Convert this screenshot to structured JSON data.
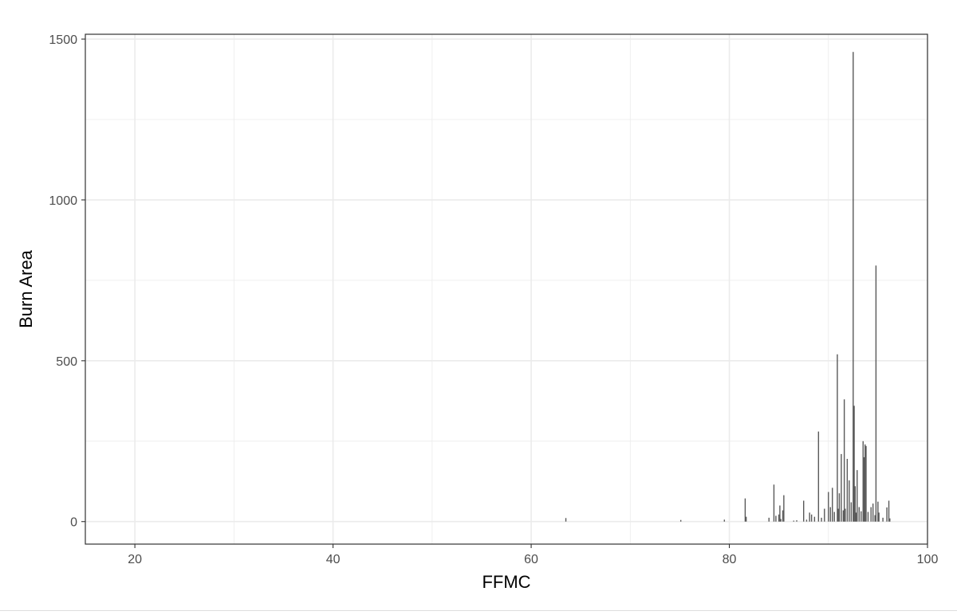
{
  "chart_data": {
    "type": "bar",
    "title": "",
    "xlabel": "FFMC",
    "ylabel": "Burn Area",
    "xlim": [
      15,
      100
    ],
    "ylim": [
      -70,
      1515
    ],
    "x_ticks": [
      20,
      40,
      60,
      80,
      100
    ],
    "y_ticks": [
      0,
      500,
      1000,
      1500
    ],
    "x_tick_labels": [
      "20",
      "40",
      "60",
      "80",
      "100"
    ],
    "y_tick_labels": [
      "0",
      "500",
      "1000",
      "1500"
    ],
    "grid": true,
    "legend": "none",
    "colors": {
      "bar": "#595959",
      "grid": "#ebebeb",
      "border": "#333333"
    },
    "points": [
      [
        63.5,
        11
      ],
      [
        75.1,
        5
      ],
      [
        79.5,
        6
      ],
      [
        81.6,
        72
      ],
      [
        81.7,
        15
      ],
      [
        84.0,
        12
      ],
      [
        84.5,
        115
      ],
      [
        84.7,
        18
      ],
      [
        85.0,
        22
      ],
      [
        85.1,
        50
      ],
      [
        85.2,
        8
      ],
      [
        85.4,
        35
      ],
      [
        85.5,
        82
      ],
      [
        86.5,
        3
      ],
      [
        86.8,
        4
      ],
      [
        87.5,
        65
      ],
      [
        87.8,
        6
      ],
      [
        88.1,
        28
      ],
      [
        88.3,
        22
      ],
      [
        88.6,
        15
      ],
      [
        89.0,
        280
      ],
      [
        89.3,
        12
      ],
      [
        89.6,
        40
      ],
      [
        90.0,
        92
      ],
      [
        90.2,
        45
      ],
      [
        90.4,
        105
      ],
      [
        90.6,
        30
      ],
      [
        90.9,
        520
      ],
      [
        91.0,
        40
      ],
      [
        91.1,
        88
      ],
      [
        91.3,
        210
      ],
      [
        91.5,
        35
      ],
      [
        91.6,
        380
      ],
      [
        91.7,
        40
      ],
      [
        91.9,
        195
      ],
      [
        92.1,
        128
      ],
      [
        92.3,
        60
      ],
      [
        92.5,
        1460
      ],
      [
        92.6,
        360
      ],
      [
        92.7,
        110
      ],
      [
        92.8,
        28
      ],
      [
        92.9,
        160
      ],
      [
        93.1,
        45
      ],
      [
        93.3,
        32
      ],
      [
        93.5,
        250
      ],
      [
        93.6,
        200
      ],
      [
        93.7,
        240
      ],
      [
        93.8,
        235
      ],
      [
        94.0,
        30
      ],
      [
        94.3,
        45
      ],
      [
        94.5,
        56
      ],
      [
        94.7,
        20
      ],
      [
        94.8,
        796
      ],
      [
        95.0,
        62
      ],
      [
        95.1,
        28
      ],
      [
        95.5,
        12
      ],
      [
        95.9,
        44
      ],
      [
        96.1,
        65
      ],
      [
        96.2,
        10
      ]
    ]
  }
}
